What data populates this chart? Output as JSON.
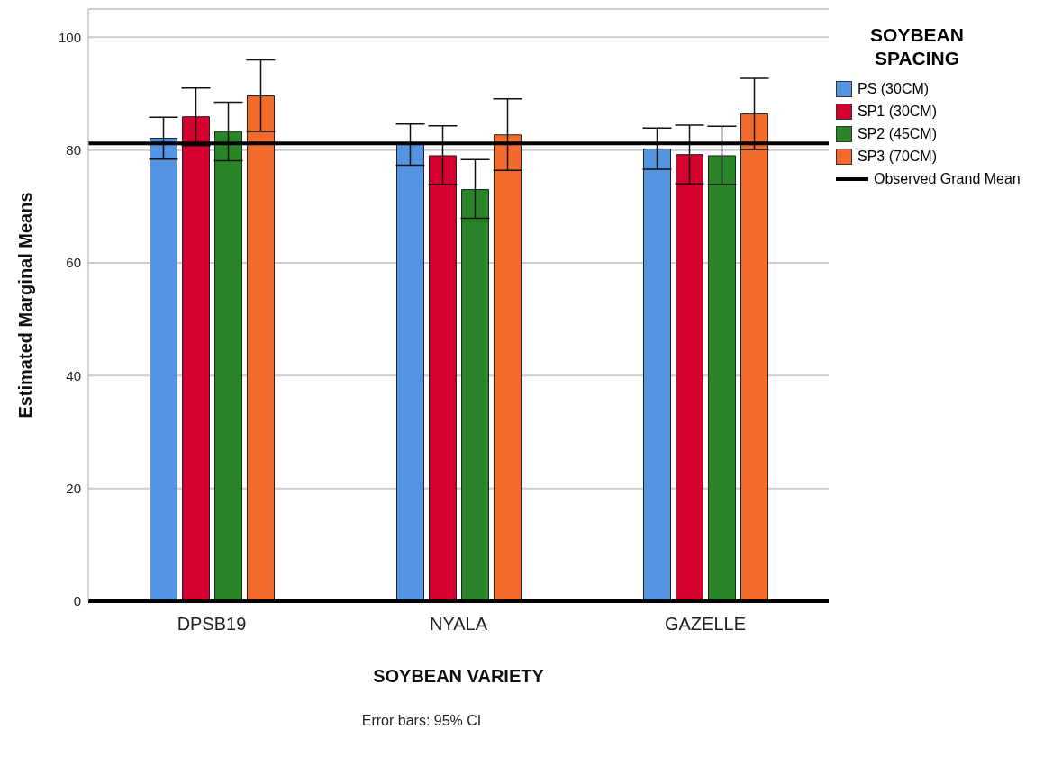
{
  "chart_data": {
    "type": "bar",
    "ylabel": "Estimated Marginal Means",
    "xlabel": "SOYBEAN VARIETY",
    "legend_title": "SOYBEAN SPACING",
    "categories": [
      "DPSB19",
      "NYALA",
      "GAZELLE"
    ],
    "series": [
      {
        "name": "PS (30CM)",
        "color": "#5494e0",
        "values": [
          82.1,
          81.0,
          80.2
        ],
        "errors": [
          [
            78.4,
            85.8
          ],
          [
            77.3,
            84.6
          ],
          [
            76.6,
            83.9
          ]
        ]
      },
      {
        "name": "SP1 (30CM)",
        "color": "#d4002f",
        "values": [
          85.9,
          79.0,
          79.2
        ],
        "errors": [
          [
            80.8,
            91.0
          ],
          [
            73.9,
            84.3
          ],
          [
            74.0,
            84.4
          ]
        ]
      },
      {
        "name": "SP2 (45CM)",
        "color": "#2a8428",
        "values": [
          83.3,
          73.0,
          79.0
        ],
        "errors": [
          [
            78.1,
            88.5
          ],
          [
            67.9,
            78.3
          ],
          [
            73.9,
            84.2
          ]
        ]
      },
      {
        "name": "SP3 (70CM)",
        "color": "#f26a2c",
        "values": [
          89.6,
          82.7,
          86.4
        ],
        "errors": [
          [
            83.3,
            96.0
          ],
          [
            76.4,
            89.1
          ],
          [
            80.1,
            92.7
          ]
        ]
      }
    ],
    "ylim": [
      0,
      105
    ],
    "yticks": [
      0,
      20,
      40,
      60,
      80,
      100
    ],
    "grid": "y",
    "legend": "right",
    "ref_lines": [
      {
        "axis": "y",
        "value": 81.2,
        "label": "Observed Grand Mean",
        "color": "#000000"
      }
    ],
    "annotations": [
      "Error bars: 95% CI"
    ]
  }
}
